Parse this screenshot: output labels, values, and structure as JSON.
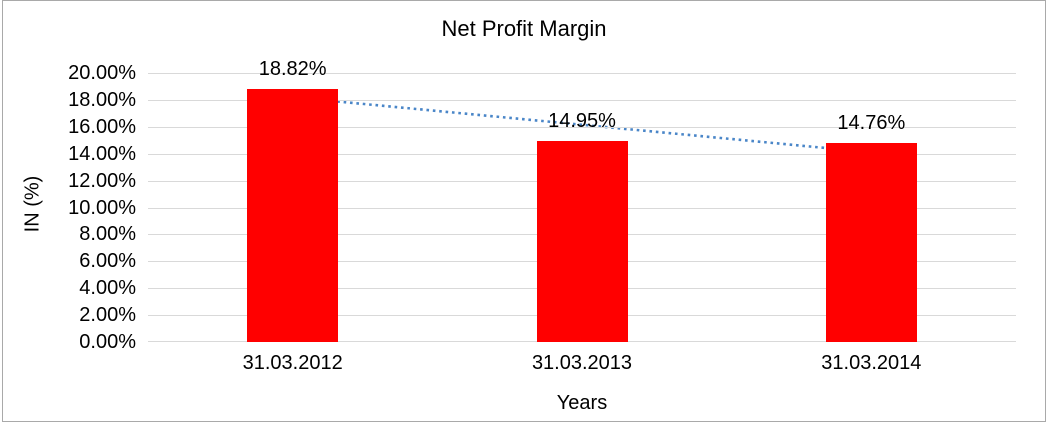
{
  "window": {
    "background": "#ffffff",
    "border_color": "#a9a9a9"
  },
  "chart_data": {
    "type": "bar",
    "title": "Net Profit Margin",
    "xlabel": "Years",
    "ylabel": "IN (%)",
    "categories": [
      "31.03.2012",
      "31.03.2013",
      "31.03.2014"
    ],
    "series": [
      {
        "name": "Net Profit Margin",
        "values": [
          18.82,
          14.95,
          14.76
        ]
      }
    ],
    "data_labels": [
      "18.82%",
      "14.95%",
      "14.76%"
    ],
    "ylim": [
      0,
      20
    ],
    "ytick_step": 2,
    "ytick_labels": [
      "0.00%",
      "2.00%",
      "4.00%",
      "6.00%",
      "8.00%",
      "10.00%",
      "12.00%",
      "14.00%",
      "16.00%",
      "18.00%",
      "20.00%"
    ],
    "grid": true,
    "legend": "none",
    "bar_color": "#ff0000",
    "gridline_color": "#d9d9d9",
    "trendline": {
      "type": "linear",
      "style": "dotted",
      "color": "#4a86c8",
      "start_pct": 18.2,
      "end_pct": 14.1
    }
  }
}
